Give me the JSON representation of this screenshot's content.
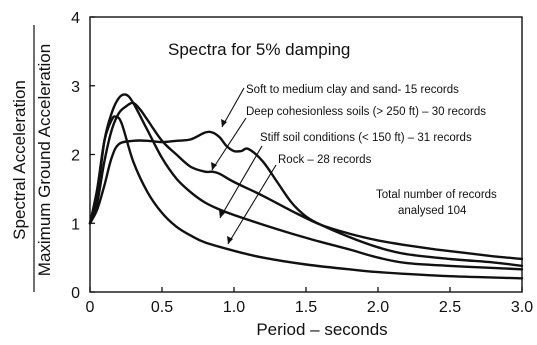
{
  "chart_data": {
    "type": "line",
    "title": "Spectra for 5% damping",
    "xlabel": "Period – seconds",
    "ylabel_top": "Spectral Acceleration",
    "ylabel_bottom": "Maximum Ground Acceleration",
    "xlim": [
      0,
      3.0
    ],
    "ylim": [
      0,
      4
    ],
    "x_ticks": [
      "0",
      "0.5",
      "1.0",
      "1.5",
      "2.0",
      "2.5",
      "3.0"
    ],
    "y_ticks": [
      "0",
      "1",
      "2",
      "3",
      "4"
    ],
    "grid": false,
    "series": [
      {
        "name": "Soft to medium clay and sand- 15 records",
        "points": [
          [
            0,
            1.0
          ],
          [
            0.05,
            1.2
          ],
          [
            0.1,
            1.55
          ],
          [
            0.15,
            1.95
          ],
          [
            0.2,
            2.15
          ],
          [
            0.3,
            2.2
          ],
          [
            0.4,
            2.2
          ],
          [
            0.5,
            2.18
          ],
          [
            0.6,
            2.2
          ],
          [
            0.7,
            2.22
          ],
          [
            0.8,
            2.32
          ],
          [
            0.85,
            2.32
          ],
          [
            0.9,
            2.25
          ],
          [
            0.95,
            2.12
          ],
          [
            1.0,
            2.05
          ],
          [
            1.05,
            2.05
          ],
          [
            1.1,
            2.08
          ],
          [
            1.2,
            1.9
          ],
          [
            1.3,
            1.6
          ],
          [
            1.4,
            1.3
          ],
          [
            1.5,
            1.1
          ],
          [
            1.6,
            0.98
          ],
          [
            1.8,
            0.8
          ],
          [
            2.0,
            0.65
          ],
          [
            2.2,
            0.55
          ],
          [
            2.5,
            0.48
          ],
          [
            2.8,
            0.43
          ],
          [
            3.0,
            0.38
          ]
        ]
      },
      {
        "name": "Deep cohesionless soils (> 250 ft) – 30 records",
        "points": [
          [
            0,
            1.0
          ],
          [
            0.05,
            1.3
          ],
          [
            0.1,
            1.9
          ],
          [
            0.15,
            2.35
          ],
          [
            0.2,
            2.6
          ],
          [
            0.25,
            2.7
          ],
          [
            0.3,
            2.75
          ],
          [
            0.35,
            2.65
          ],
          [
            0.4,
            2.5
          ],
          [
            0.5,
            2.2
          ],
          [
            0.6,
            2.0
          ],
          [
            0.7,
            1.82
          ],
          [
            0.8,
            1.75
          ],
          [
            0.85,
            1.75
          ],
          [
            0.9,
            1.72
          ],
          [
            1.0,
            1.6
          ],
          [
            1.2,
            1.4
          ],
          [
            1.4,
            1.18
          ],
          [
            1.6,
            0.98
          ],
          [
            1.8,
            0.85
          ],
          [
            2.0,
            0.75
          ],
          [
            2.2,
            0.68
          ],
          [
            2.4,
            0.62
          ],
          [
            2.6,
            0.57
          ],
          [
            2.8,
            0.52
          ],
          [
            3.0,
            0.48
          ]
        ]
      },
      {
        "name": "Stiff soil conditions (< 150 ft) – 31 records",
        "points": [
          [
            0,
            1.0
          ],
          [
            0.05,
            1.4
          ],
          [
            0.1,
            2.2
          ],
          [
            0.15,
            2.6
          ],
          [
            0.2,
            2.82
          ],
          [
            0.25,
            2.87
          ],
          [
            0.3,
            2.75
          ],
          [
            0.4,
            2.35
          ],
          [
            0.5,
            1.95
          ],
          [
            0.6,
            1.65
          ],
          [
            0.7,
            1.45
          ],
          [
            0.8,
            1.3
          ],
          [
            0.9,
            1.2
          ],
          [
            1.0,
            1.12
          ],
          [
            1.2,
            0.98
          ],
          [
            1.4,
            0.85
          ],
          [
            1.6,
            0.73
          ],
          [
            1.8,
            0.62
          ],
          [
            2.0,
            0.5
          ],
          [
            2.2,
            0.42
          ],
          [
            2.5,
            0.38
          ],
          [
            2.8,
            0.35
          ],
          [
            3.0,
            0.33
          ]
        ]
      },
      {
        "name": "Rock – 28 records",
        "points": [
          [
            0,
            1.0
          ],
          [
            0.05,
            1.5
          ],
          [
            0.1,
            2.2
          ],
          [
            0.15,
            2.5
          ],
          [
            0.18,
            2.55
          ],
          [
            0.22,
            2.45
          ],
          [
            0.3,
            1.9
          ],
          [
            0.4,
            1.45
          ],
          [
            0.5,
            1.15
          ],
          [
            0.6,
            0.95
          ],
          [
            0.7,
            0.82
          ],
          [
            0.8,
            0.72
          ],
          [
            1.0,
            0.6
          ],
          [
            1.2,
            0.5
          ],
          [
            1.5,
            0.4
          ],
          [
            1.8,
            0.33
          ],
          [
            2.0,
            0.29
          ],
          [
            2.5,
            0.23
          ],
          [
            3.0,
            0.2
          ]
        ]
      }
    ],
    "annotations": [
      "Soft to medium clay and sand- 15 records",
      "Deep cohesionless soils (> 250 ft) – 30 records",
      "Stiff soil conditions (< 150 ft) – 31 records",
      "Rock – 28 records",
      "Total number of records",
      "analysed 104"
    ]
  }
}
